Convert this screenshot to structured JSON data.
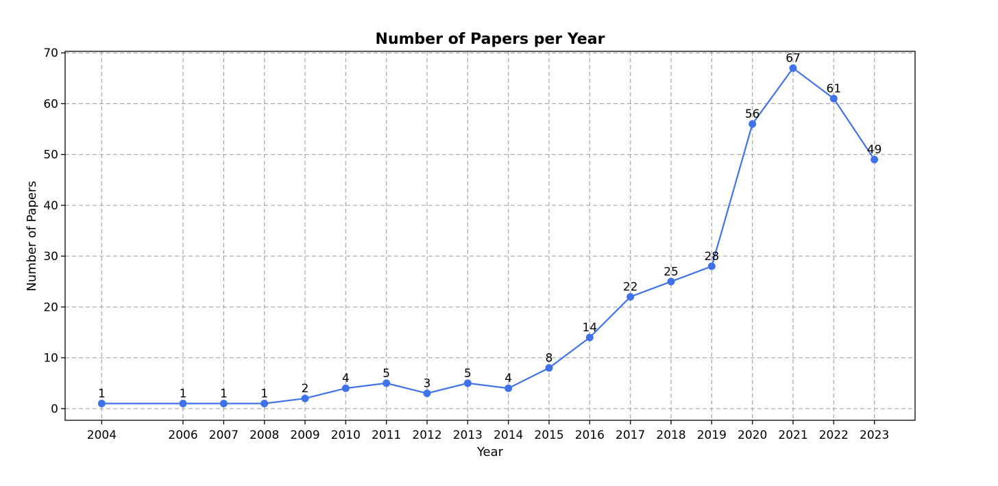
{
  "chart_data": {
    "type": "line",
    "title": "Number of Papers per Year",
    "xlabel": "Year",
    "ylabel": "Number of Papers",
    "x": [
      2004,
      2006,
      2007,
      2008,
      2009,
      2010,
      2011,
      2012,
      2013,
      2014,
      2015,
      2016,
      2017,
      2018,
      2019,
      2020,
      2021,
      2022,
      2023
    ],
    "series": [
      {
        "values": [
          1,
          1,
          1,
          1,
          2,
          4,
          5,
          3,
          5,
          4,
          8,
          14,
          22,
          25,
          28,
          56,
          67,
          61,
          49
        ],
        "color": "#3f72e8"
      }
    ],
    "xlim": [
      2003.1,
      2024.0
    ],
    "ylim": [
      -2.3,
      70.3
    ],
    "yticks": [
      0,
      10,
      20,
      30,
      40,
      50,
      60,
      70
    ],
    "xticks": [
      2004,
      2006,
      2007,
      2008,
      2009,
      2010,
      2011,
      2012,
      2013,
      2014,
      2015,
      2016,
      2017,
      2018,
      2019,
      2020,
      2021,
      2022,
      2023
    ],
    "grid": true,
    "legend": "none",
    "data_labels": true
  }
}
